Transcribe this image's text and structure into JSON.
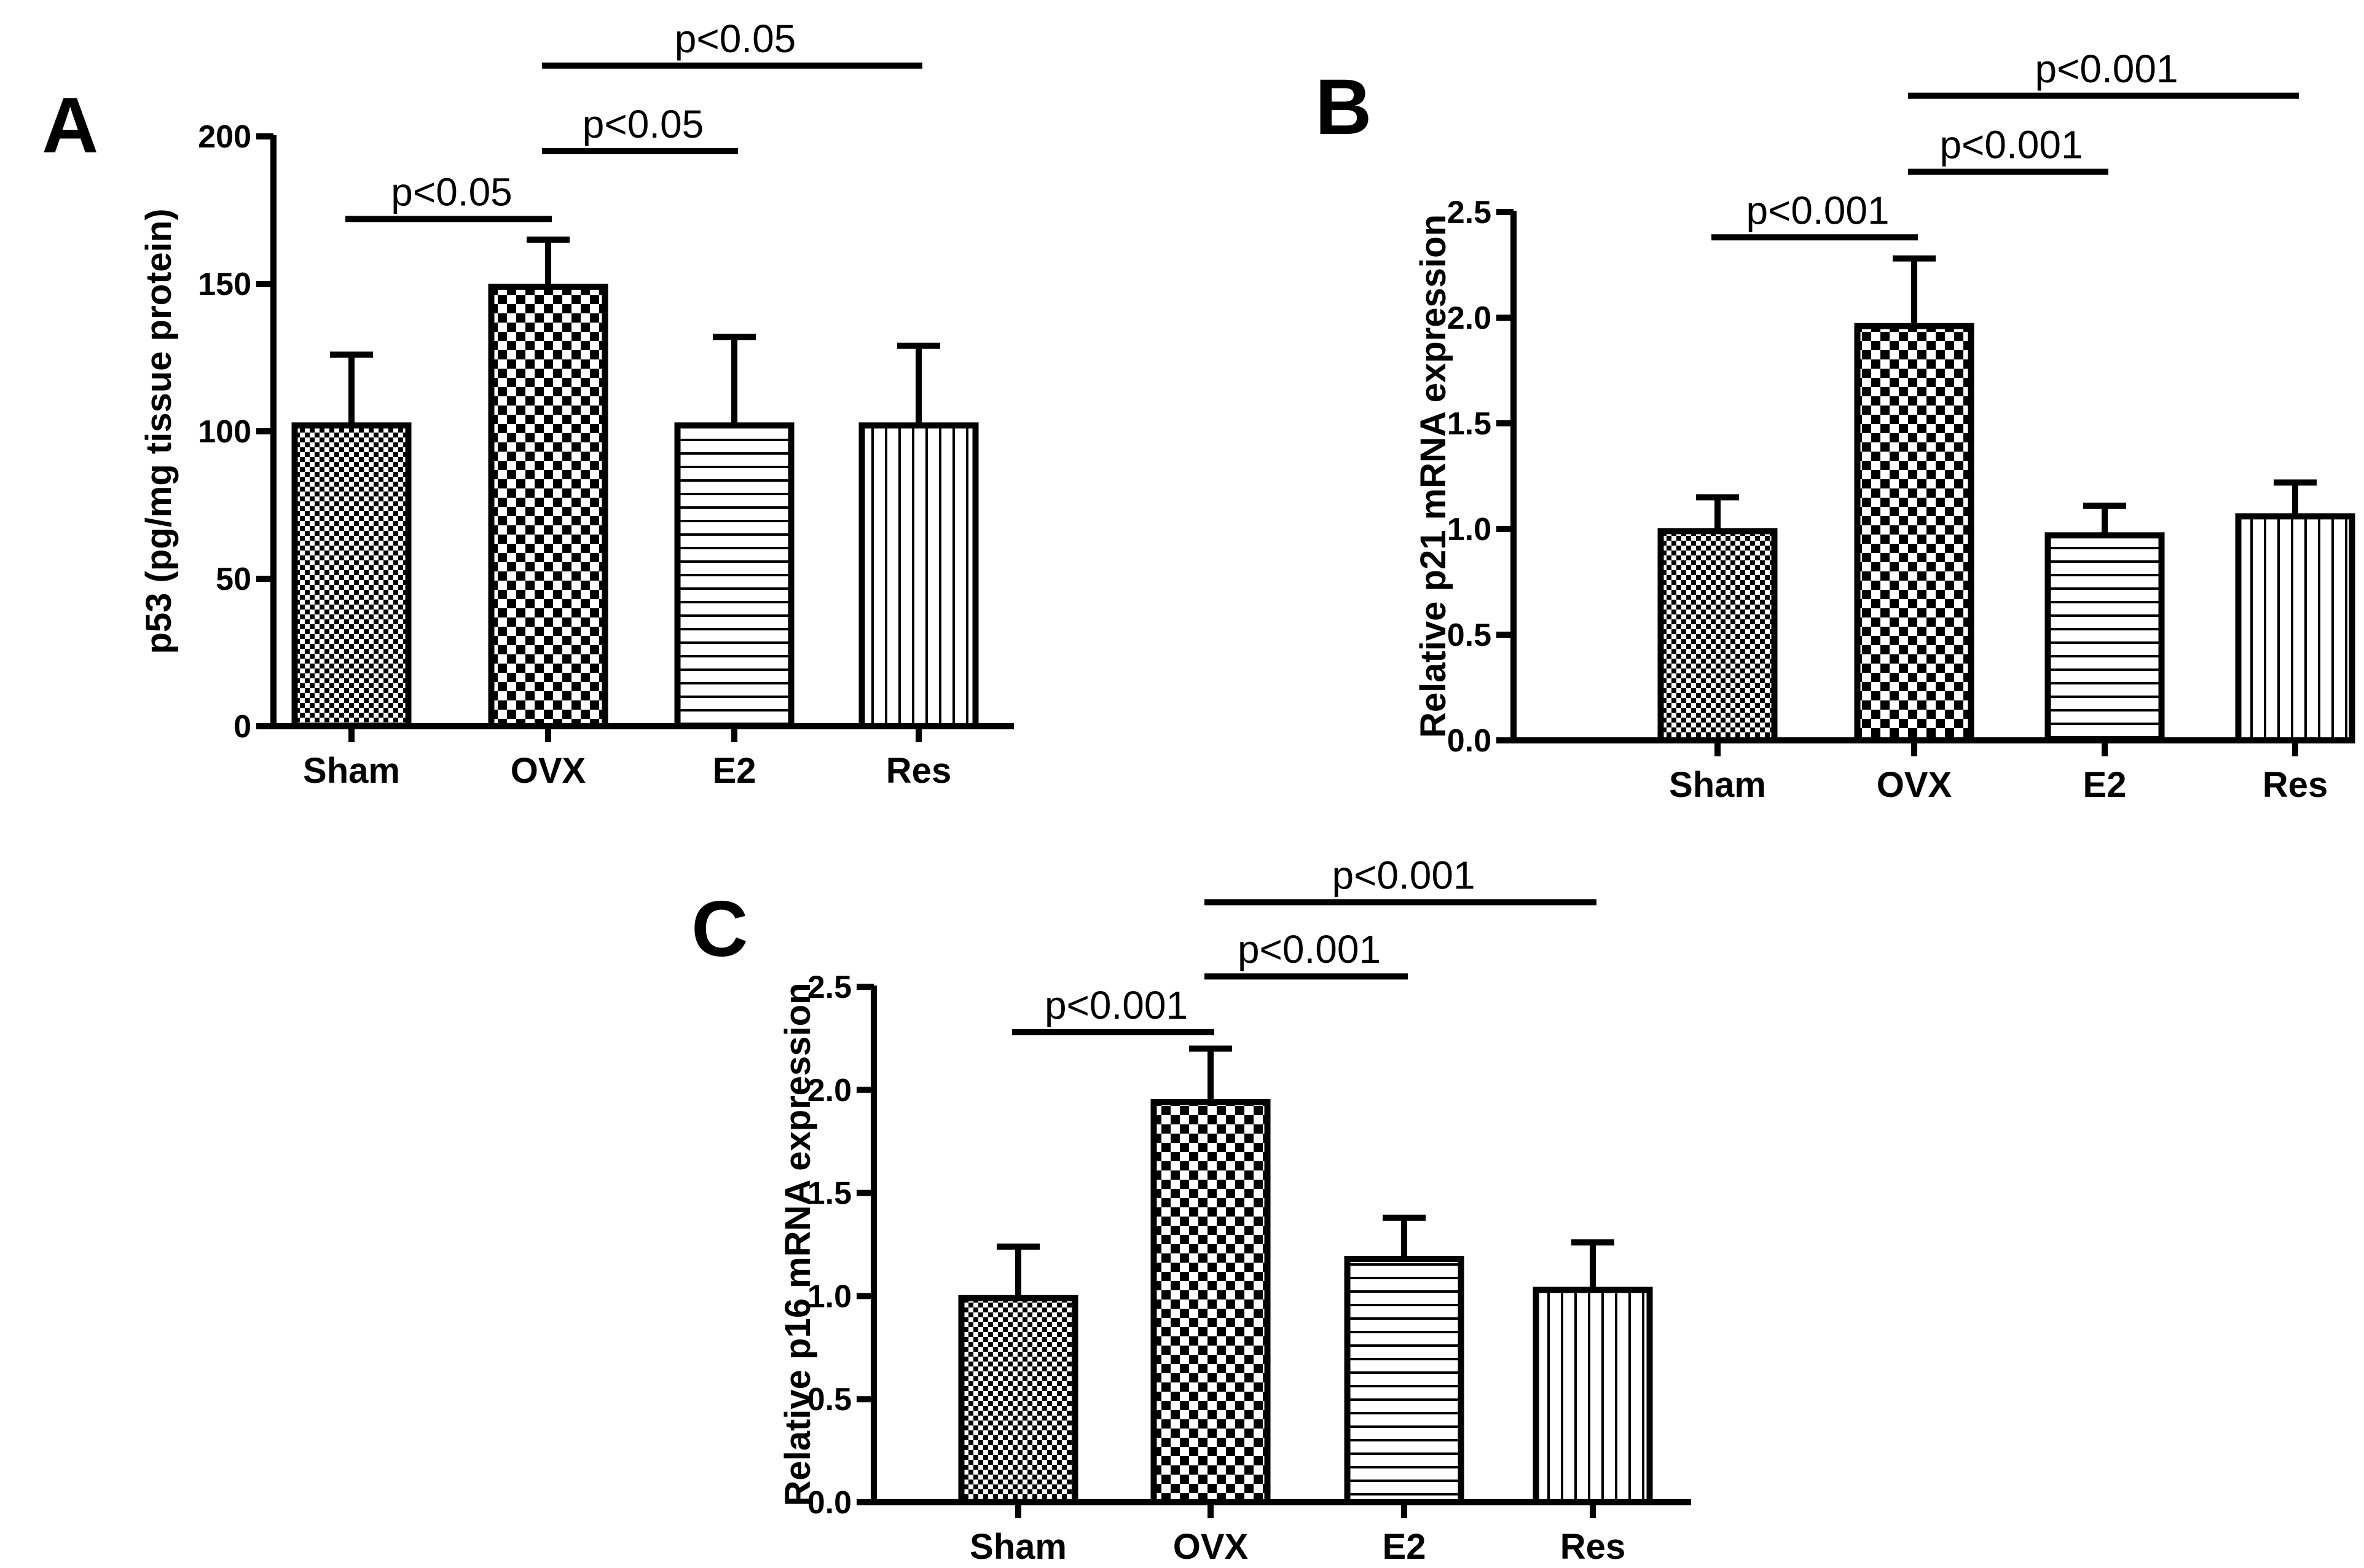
{
  "chart_data": [
    {
      "panel": "A",
      "type": "bar",
      "categories": [
        "Sham",
        "OVX",
        "E2",
        "Res"
      ],
      "values": [
        102,
        149,
        102,
        102
      ],
      "errors": [
        24,
        16,
        30,
        27
      ],
      "patterns": [
        "checker-small",
        "checker-large",
        "horizontal",
        "vertical"
      ],
      "ylabel": "p53 (pg/mg tissue protein)",
      "xlabel": "",
      "ylim": [
        0,
        200
      ],
      "yticks": [
        "0",
        "50",
        "100",
        "150",
        "200"
      ],
      "ytick_values": [
        0,
        50,
        100,
        150,
        200
      ],
      "comparisons": [
        {
          "from": 0,
          "to": 1,
          "label": "p<0.05",
          "y": 172
        },
        {
          "from": 1,
          "to": 2,
          "label": "p<0.05",
          "y": 195
        },
        {
          "from": 1,
          "to": 3,
          "label": "p<0.05",
          "y": 224
        }
      ]
    },
    {
      "panel": "B",
      "type": "bar",
      "categories": [
        "Sham",
        "OVX",
        "E2",
        "Res"
      ],
      "values": [
        0.99,
        1.96,
        0.97,
        1.06
      ],
      "errors": [
        0.16,
        0.32,
        0.14,
        0.16
      ],
      "patterns": [
        "checker-small",
        "checker-large",
        "horizontal",
        "vertical"
      ],
      "ylabel": "Relative p21 mRNA expression",
      "xlabel": "",
      "ylim": [
        0,
        2.5
      ],
      "yticks": [
        "0.0",
        "0.5",
        "1.0",
        "1.5",
        "2.0",
        "2.5"
      ],
      "ytick_values": [
        0,
        0.5,
        1.0,
        1.5,
        2.0,
        2.5
      ],
      "comparisons": [
        {
          "from": 0,
          "to": 1,
          "label": "p<0.001",
          "y": 2.38
        },
        {
          "from": 1,
          "to": 2,
          "label": "p<0.001",
          "y": 2.69
        },
        {
          "from": 1,
          "to": 3,
          "label": "p<0.001",
          "y": 3.05
        }
      ]
    },
    {
      "panel": "C",
      "type": "bar",
      "categories": [
        "Sham",
        "OVX",
        "E2",
        "Res"
      ],
      "values": [
        0.99,
        1.94,
        1.18,
        1.03
      ],
      "errors": [
        0.25,
        0.26,
        0.2,
        0.23
      ],
      "patterns": [
        "checker-small",
        "checker-large",
        "horizontal",
        "vertical"
      ],
      "ylabel": "Relative p16 mRNA expression",
      "xlabel": "",
      "ylim": [
        0,
        2.5
      ],
      "yticks": [
        "0.0",
        "0.5",
        "1.0",
        "1.5",
        "2.0",
        "2.5"
      ],
      "ytick_values": [
        0,
        0.5,
        1.0,
        1.5,
        2.0,
        2.5
      ],
      "comparisons": [
        {
          "from": 0,
          "to": 1,
          "label": "p<0.001",
          "y": 2.28
        },
        {
          "from": 1,
          "to": 2,
          "label": "p<0.001",
          "y": 2.55
        },
        {
          "from": 1,
          "to": 3,
          "label": "p<0.001",
          "y": 2.91
        }
      ]
    }
  ]
}
